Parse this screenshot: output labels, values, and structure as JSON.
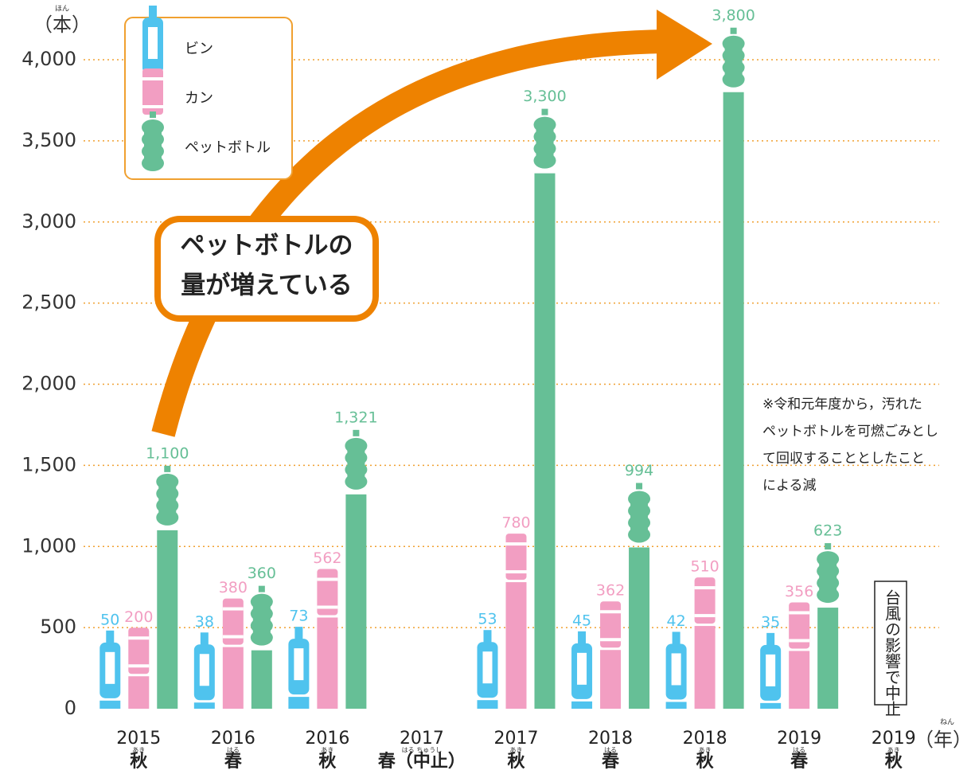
{
  "chart_data": {
    "type": "bar",
    "y_unit": "（本）",
    "y_unit_reading": "ほん",
    "x_unit": "（年）",
    "x_unit_reading": "ねん",
    "categories": [
      "2015",
      "2016",
      "2016",
      "2017",
      "2017",
      "2018",
      "2018",
      "2019",
      "2019"
    ],
    "seasons": [
      "秋",
      "春",
      "秋",
      "春（中止）",
      "秋",
      "春",
      "秋",
      "春",
      "秋"
    ],
    "season_readings": [
      "あき",
      "はる",
      "あき",
      "はる ちゅうし",
      "あき",
      "はる",
      "あき",
      "はる",
      "あき"
    ],
    "series": [
      {
        "name": "ビン",
        "color": "#4fc3ee",
        "values": [
          50,
          38,
          73,
          null,
          53,
          45,
          42,
          35,
          null
        ]
      },
      {
        "name": "カン",
        "color": "#f29ec2",
        "values": [
          200,
          380,
          562,
          null,
          780,
          362,
          510,
          356,
          null
        ]
      },
      {
        "name": "ペットボトル",
        "color": "#66bf96",
        "values": [
          1100,
          360,
          1321,
          null,
          3300,
          994,
          3800,
          623,
          null
        ],
        "value_labels": [
          "1,100",
          "360",
          "1,321",
          null,
          "3,300",
          "994",
          "3,800",
          "623",
          null
        ]
      }
    ],
    "ylim": [
      0,
      4000
    ],
    "yticks": [
      0,
      500,
      {
        "value": 1000,
        "label": "1,000"
      },
      {
        "value": 1500,
        "label": "1,500"
      },
      {
        "value": 2000,
        "label": "2,000"
      },
      {
        "value": 2500,
        "label": "2,500"
      },
      {
        "value": 3000,
        "label": "3,000"
      },
      {
        "value": 3500,
        "label": "3,500"
      },
      {
        "value": 4000,
        "label": "4,000"
      }
    ],
    "grid": true,
    "callout": [
      "ペットボトルの",
      "量が増えている"
    ],
    "note": [
      "※令和元年度から，汚れた",
      "ペットボトルを可燃ごみとし",
      "て回収することとしたこと",
      "による減"
    ],
    "cancel_note": "台風の影響で中止"
  }
}
